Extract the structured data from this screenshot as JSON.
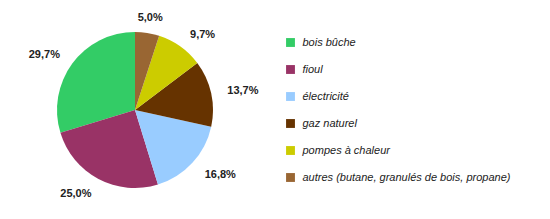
{
  "chart_data": {
    "type": "pie",
    "categories": [
      "bois bûche",
      "fioul",
      "électricité",
      "gaz naturel",
      "pompes à chaleur",
      "autres (butane, granulés de bois, propane)"
    ],
    "values": [
      29.7,
      25.0,
      16.8,
      13.7,
      9.7,
      5.0
    ],
    "value_labels": [
      "29,7%",
      "25,0%",
      "16,8%",
      "13,7%",
      "9,7%",
      "5,0%"
    ],
    "colors": [
      "#33cc66",
      "#993366",
      "#99ccff",
      "#663300",
      "#cccc00",
      "#996633"
    ],
    "data_labels": true,
    "legend": "right"
  }
}
